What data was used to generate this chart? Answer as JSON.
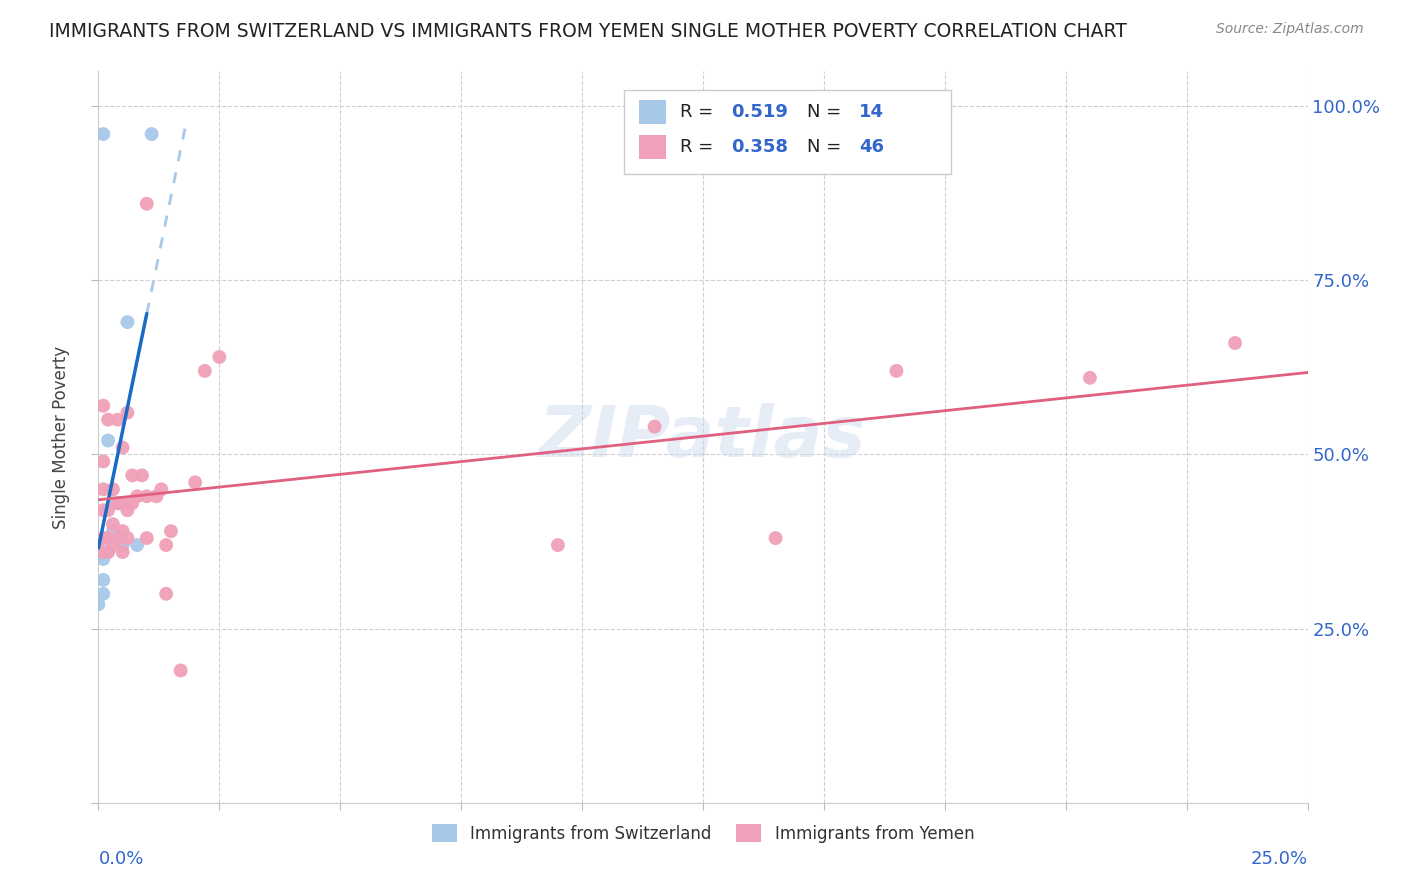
{
  "title": "IMMIGRANTS FROM SWITZERLAND VS IMMIGRANTS FROM YEMEN SINGLE MOTHER POVERTY CORRELATION CHART",
  "source": "Source: ZipAtlas.com",
  "ylabel": "Single Mother Poverty",
  "color_swiss": "#a8c8e8",
  "color_yemen": "#f0a0b8",
  "line_swiss": "#1a6bc4",
  "line_swiss_dash": "#a8c8e8",
  "line_yemen": "#e06080",
  "watermark": "ZIPatlas",
  "swiss_x": [
    0.0,
    0.001,
    0.001,
    0.001,
    0.001,
    0.002,
    0.002,
    0.003,
    0.003,
    0.004,
    0.005,
    0.006,
    0.008,
    0.011
  ],
  "swiss_y": [
    0.285,
    0.3,
    0.32,
    0.35,
    0.96,
    0.36,
    0.52,
    0.39,
    0.43,
    0.43,
    0.37,
    0.69,
    0.37,
    0.96
  ],
  "yemen_x": [
    0.0,
    0.001,
    0.001,
    0.001,
    0.001,
    0.001,
    0.001,
    0.002,
    0.002,
    0.002,
    0.002,
    0.003,
    0.003,
    0.003,
    0.004,
    0.004,
    0.004,
    0.005,
    0.005,
    0.005,
    0.005,
    0.006,
    0.006,
    0.006,
    0.007,
    0.007,
    0.008,
    0.009,
    0.01,
    0.01,
    0.01,
    0.012,
    0.013,
    0.014,
    0.014,
    0.015,
    0.017,
    0.02,
    0.022,
    0.025,
    0.095,
    0.115,
    0.14,
    0.165,
    0.205,
    0.235
  ],
  "yemen_y": [
    0.375,
    0.36,
    0.38,
    0.42,
    0.45,
    0.49,
    0.57,
    0.36,
    0.38,
    0.42,
    0.55,
    0.37,
    0.4,
    0.45,
    0.38,
    0.43,
    0.55,
    0.36,
    0.39,
    0.43,
    0.51,
    0.38,
    0.42,
    0.56,
    0.43,
    0.47,
    0.44,
    0.47,
    0.38,
    0.44,
    0.86,
    0.44,
    0.45,
    0.3,
    0.37,
    0.39,
    0.19,
    0.46,
    0.62,
    0.64,
    0.37,
    0.54,
    0.38,
    0.62,
    0.61,
    0.66
  ],
  "xlim": [
    0.0,
    0.25
  ],
  "ylim": [
    0.0,
    1.05
  ],
  "yticks": [
    0.0,
    0.25,
    0.5,
    0.75,
    1.0
  ],
  "ytick_labels": [
    "",
    "25.0%",
    "50.0%",
    "75.0%",
    "100.0%"
  ],
  "xtick_labels_pos": [
    0.0,
    0.25
  ],
  "xtick_labels": [
    "0.0%",
    "25.0%"
  ]
}
